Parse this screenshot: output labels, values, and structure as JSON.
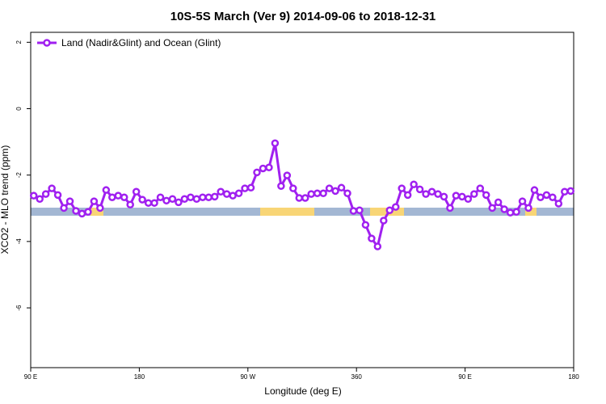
{
  "chart_data": {
    "type": "line",
    "title": "10S-5S March (Ver 9)   2014-09-06 to 2018-12-31",
    "x_label": "Longitude (deg E)",
    "y_label": "XCO2 - MLO trend (ppm)",
    "legend": "top-left",
    "x": [
      92.5,
      97.5,
      102.5,
      107.5,
      112.5,
      117.5,
      122.5,
      127.5,
      132.5,
      137.5,
      142.5,
      147.5,
      152.5,
      157.5,
      162.5,
      167.5,
      172.5,
      177.5,
      182.5,
      187.5,
      192.5,
      197.5,
      202.5,
      207.5,
      212.5,
      217.5,
      222.5,
      227.5,
      232.5,
      237.5,
      242.5,
      247.5,
      252.5,
      257.5,
      262.5,
      267.5,
      272.5,
      277.5,
      282.5,
      287.5,
      292.5,
      297.5,
      302.5,
      307.5,
      312.5,
      317.5,
      322.5,
      327.5,
      332.5,
      337.5,
      342.5,
      347.5,
      352.5,
      357.5,
      362.5,
      367.5,
      372.5,
      377.5,
      382.5,
      387.5,
      392.5,
      397.5,
      402.5,
      407.5,
      412.5,
      417.5,
      422.5,
      427.5,
      432.5,
      437.5,
      442.5,
      447.5,
      452.5,
      457.5,
      462.5,
      467.5,
      472.5,
      477.5,
      482.5,
      487.5,
      492.5,
      497.5,
      502.5,
      507.5,
      512.5,
      517.5,
      522.5,
      527.5,
      532.5,
      537.5
    ],
    "series": [
      {
        "name": "Land (Nadir&Glint) and Ocean (Glint)",
        "color": "#a020f0",
        "values": [
          -2.62,
          -2.72,
          -2.57,
          -2.4,
          -2.6,
          -2.99,
          -2.79,
          -3.08,
          -3.16,
          -3.11,
          -2.79,
          -2.99,
          -2.45,
          -2.67,
          -2.62,
          -2.67,
          -2.89,
          -2.5,
          -2.74,
          -2.84,
          -2.84,
          -2.67,
          -2.77,
          -2.72,
          -2.82,
          -2.72,
          -2.67,
          -2.72,
          -2.67,
          -2.67,
          -2.65,
          -2.5,
          -2.57,
          -2.62,
          -2.55,
          -2.4,
          -2.38,
          -1.92,
          -1.8,
          -1.77,
          -1.04,
          -2.33,
          -2.01,
          -2.4,
          -2.69,
          -2.69,
          -2.57,
          -2.55,
          -2.55,
          -2.4,
          -2.48,
          -2.38,
          -2.55,
          -3.08,
          -3.06,
          -3.5,
          -3.91,
          -4.15,
          -3.37,
          -3.06,
          -2.96,
          -2.4,
          -2.6,
          -2.28,
          -2.43,
          -2.57,
          -2.5,
          -2.57,
          -2.65,
          -2.99,
          -2.62,
          -2.65,
          -2.72,
          -2.57,
          -2.4,
          -2.6,
          -2.99,
          -2.82,
          -3.03,
          -3.13,
          -3.11,
          -2.79,
          -2.99,
          -2.45,
          -2.67,
          -2.6,
          -2.67,
          -2.86,
          -2.5,
          -2.48
        ]
      }
    ],
    "xlim": [
      90,
      540
    ],
    "xticks": [
      {
        "value": 90,
        "label": "90 E"
      },
      180,
      {
        "value": 270,
        "label": "90 W"
      },
      360,
      {
        "value": 450,
        "label": "90 E"
      },
      {
        "value": 540,
        "label": "180"
      }
    ],
    "ylim": [
      -7.8,
      2.3
    ],
    "yticks": [
      2,
      0,
      -2,
      -4,
      -6
    ]
  }
}
